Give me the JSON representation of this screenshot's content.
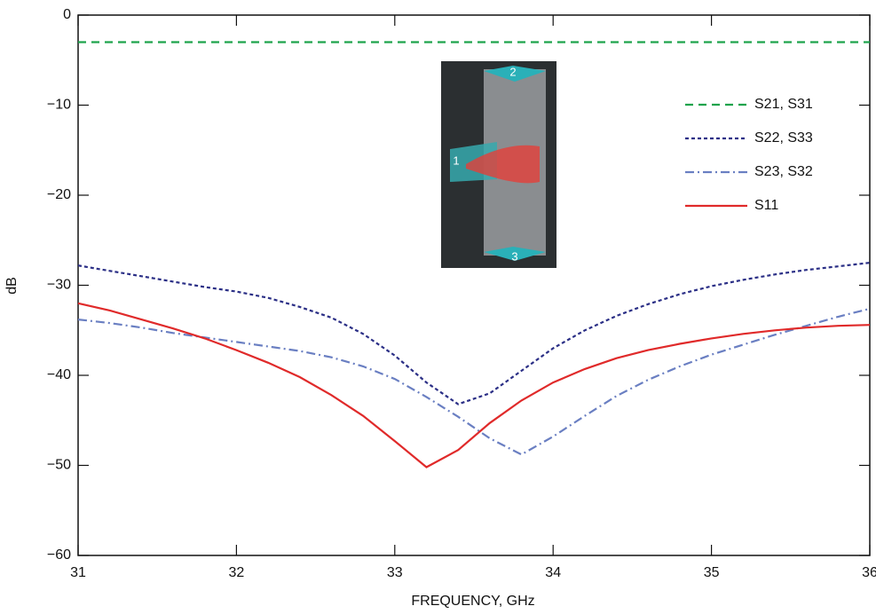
{
  "chart_data": {
    "type": "line",
    "x_label": "FREQUENCY, GHz",
    "y_label": "dB",
    "x": [
      31,
      31.2,
      31.4,
      31.6,
      31.8,
      32,
      32.2,
      32.4,
      32.6,
      32.8,
      33,
      33.2,
      33.4,
      33.6,
      33.8,
      34,
      34.2,
      34.4,
      34.6,
      34.8,
      35,
      35.2,
      35.4,
      35.6,
      35.8,
      36
    ],
    "series": [
      {
        "name": "S21, S31",
        "color": "#1ea34c",
        "dash": "9,6",
        "values": [
          -3,
          -3,
          -3,
          -3,
          -3,
          -3,
          -3,
          -3,
          -3,
          -3,
          -3,
          -3,
          -3,
          -3,
          -3,
          -3,
          -3,
          -3,
          -3,
          -3,
          -3,
          -3,
          -3,
          -3,
          -3,
          -3
        ]
      },
      {
        "name": "S22, S33",
        "color": "#2b2f86",
        "dash": "4,3",
        "values": [
          -27.8,
          -28.4,
          -29.0,
          -29.6,
          -30.2,
          -30.7,
          -31.4,
          -32.4,
          -33.6,
          -35.4,
          -37.8,
          -40.8,
          -43.2,
          -42.0,
          -39.5,
          -37.0,
          -35.0,
          -33.4,
          -32.1,
          -31.0,
          -30.1,
          -29.4,
          -28.8,
          -28.3,
          -27.9,
          -27.5
        ]
      },
      {
        "name": "S23, S32",
        "color": "#6a7fc2",
        "dash": "10,4,2,4",
        "values": [
          -33.8,
          -34.2,
          -34.7,
          -35.3,
          -35.8,
          -36.3,
          -36.8,
          -37.3,
          -38.0,
          -39.0,
          -40.4,
          -42.4,
          -44.6,
          -47.0,
          -48.8,
          -46.8,
          -44.5,
          -42.3,
          -40.5,
          -39.0,
          -37.7,
          -36.6,
          -35.5,
          -34.5,
          -33.5,
          -32.6
        ]
      },
      {
        "name": "S11",
        "color": "#e02a2a",
        "dash": "none",
        "values": [
          -32.0,
          -32.8,
          -33.8,
          -34.8,
          -35.9,
          -37.2,
          -38.6,
          -40.2,
          -42.2,
          -44.5,
          -47.3,
          -50.2,
          -48.3,
          -45.3,
          -42.8,
          -40.8,
          -39.3,
          -38.1,
          -37.2,
          -36.5,
          -35.9,
          -35.4,
          -35.0,
          -34.7,
          -34.5,
          -34.4
        ]
      }
    ],
    "xlim": [
      31,
      36
    ],
    "xticks": [
      31,
      32,
      33,
      34,
      35,
      36
    ],
    "ylim": [
      -60,
      0
    ],
    "yticks": [
      0,
      {
        "value": -10,
        "label": "−10"
      },
      {
        "value": -20,
        "label": "−20"
      },
      {
        "value": -30,
        "label": "−30"
      },
      {
        "value": -40,
        "label": "−40"
      },
      {
        "value": -50,
        "label": "−50"
      },
      {
        "value": -60,
        "label": "−60"
      }
    ],
    "grid": false,
    "inset_labels": [
      "2",
      "1",
      "3"
    ]
  }
}
